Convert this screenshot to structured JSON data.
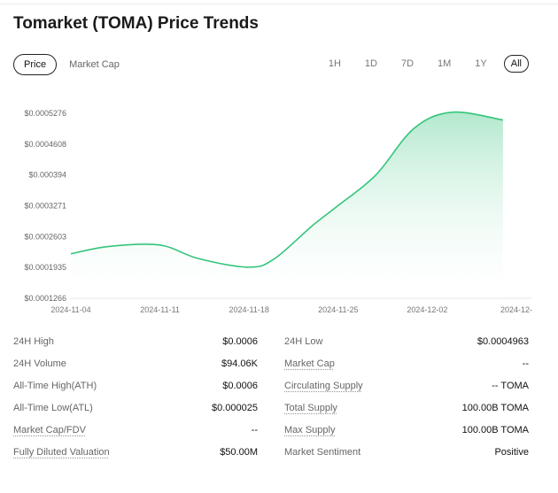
{
  "title": "Tomarket (TOMA) Price Trends",
  "tabs": [
    {
      "label": "Price",
      "active": true
    },
    {
      "label": "Market Cap",
      "active": false
    }
  ],
  "ranges": [
    {
      "label": "1H"
    },
    {
      "label": "1D"
    },
    {
      "label": "7D"
    },
    {
      "label": "1M"
    },
    {
      "label": "1Y"
    },
    {
      "label": "All",
      "active": true
    }
  ],
  "chart_data": {
    "type": "area",
    "y_tick_labels": [
      "$0.0005276",
      "$0.0004608",
      "$0.000394",
      "$0.0003271",
      "$0.0002603",
      "$0.0001935",
      "$0.0001266"
    ],
    "x_tick_labels": [
      "2024-11-04",
      "2024-11-11",
      "2024-11-18",
      "2024-11-25",
      "2024-12-02",
      "2024-12-"
    ],
    "ylim": [
      0.0001266,
      0.0005276
    ],
    "series": [
      {
        "x": [
          "2024-11-04",
          "2024-11-07",
          "2024-11-11",
          "2024-11-14",
          "2024-11-18",
          "2024-11-20",
          "2024-11-23",
          "2024-11-25",
          "2024-11-28",
          "2024-12-01",
          "2024-12-04",
          "2024-12-08"
        ],
        "values": [
          0.000223,
          0.000239,
          0.000242,
          0.000213,
          0.000194,
          0.000212,
          0.000284,
          0.000327,
          0.000394,
          0.000495,
          0.00053,
          0.000513
        ]
      }
    ],
    "colors": {
      "line": "#34c47c",
      "fill_top": "#34c47c",
      "fill_bottom": "#ffffff"
    }
  },
  "stats": {
    "left": [
      {
        "label": "24H High",
        "value": "$0.0006",
        "dashed": false
      },
      {
        "label": "24H Volume",
        "value": "$94.06K",
        "dashed": false
      },
      {
        "label": "All-Time High(ATH)",
        "value": "$0.0006",
        "dashed": false
      },
      {
        "label": "All-Time Low(ATL)",
        "value": "$0.000025",
        "dashed": false
      },
      {
        "label": "Market Cap/FDV",
        "value": "--",
        "dashed": true
      },
      {
        "label": "Fully Diluted Valuation",
        "value": "$50.00M",
        "dashed": true
      }
    ],
    "right": [
      {
        "label": "24H Low",
        "value": "$0.0004963",
        "dashed": false
      },
      {
        "label": "Market Cap",
        "value": "--",
        "dashed": true
      },
      {
        "label": "Circulating Supply",
        "value": "-- TOMA",
        "dashed": true
      },
      {
        "label": "Total Supply",
        "value": "100.00B TOMA",
        "dashed": true
      },
      {
        "label": "Max Supply",
        "value": "100.00B TOMA",
        "dashed": true
      },
      {
        "label": "Market Sentiment",
        "value": "Positive",
        "dashed": false
      }
    ]
  }
}
